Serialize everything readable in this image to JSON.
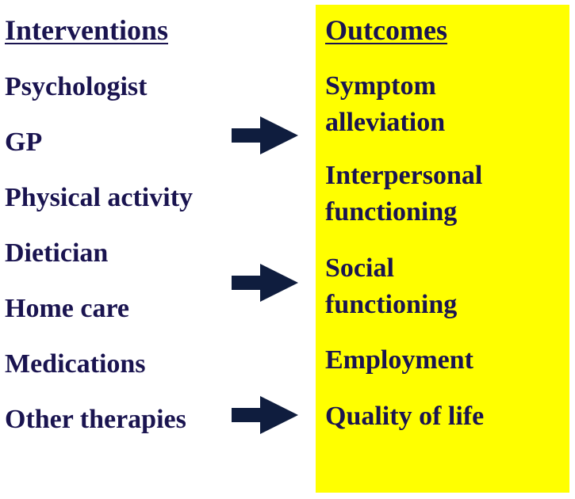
{
  "interventions": {
    "title": "Interventions",
    "items": [
      "Psychologist",
      "GP",
      "Physical activity",
      "Dietician",
      "Home care",
      "Medications",
      "Other therapies"
    ]
  },
  "outcomes": {
    "title": "Outcomes",
    "items": [
      {
        "line1": "Symptom",
        "line2": "alleviation"
      },
      {
        "line1": "Interpersonal",
        "line2": "functioning"
      },
      {
        "line1": "Social",
        "line2": "functioning"
      },
      {
        "line1": "Employment",
        "line2": ""
      },
      {
        "line1": "Quality of life",
        "line2": ""
      }
    ],
    "background_color": "#ffff00"
  },
  "text_color": "#1a1450",
  "arrow_color": "#0f1d3e",
  "arrow_icon": "right-arrow-icon"
}
